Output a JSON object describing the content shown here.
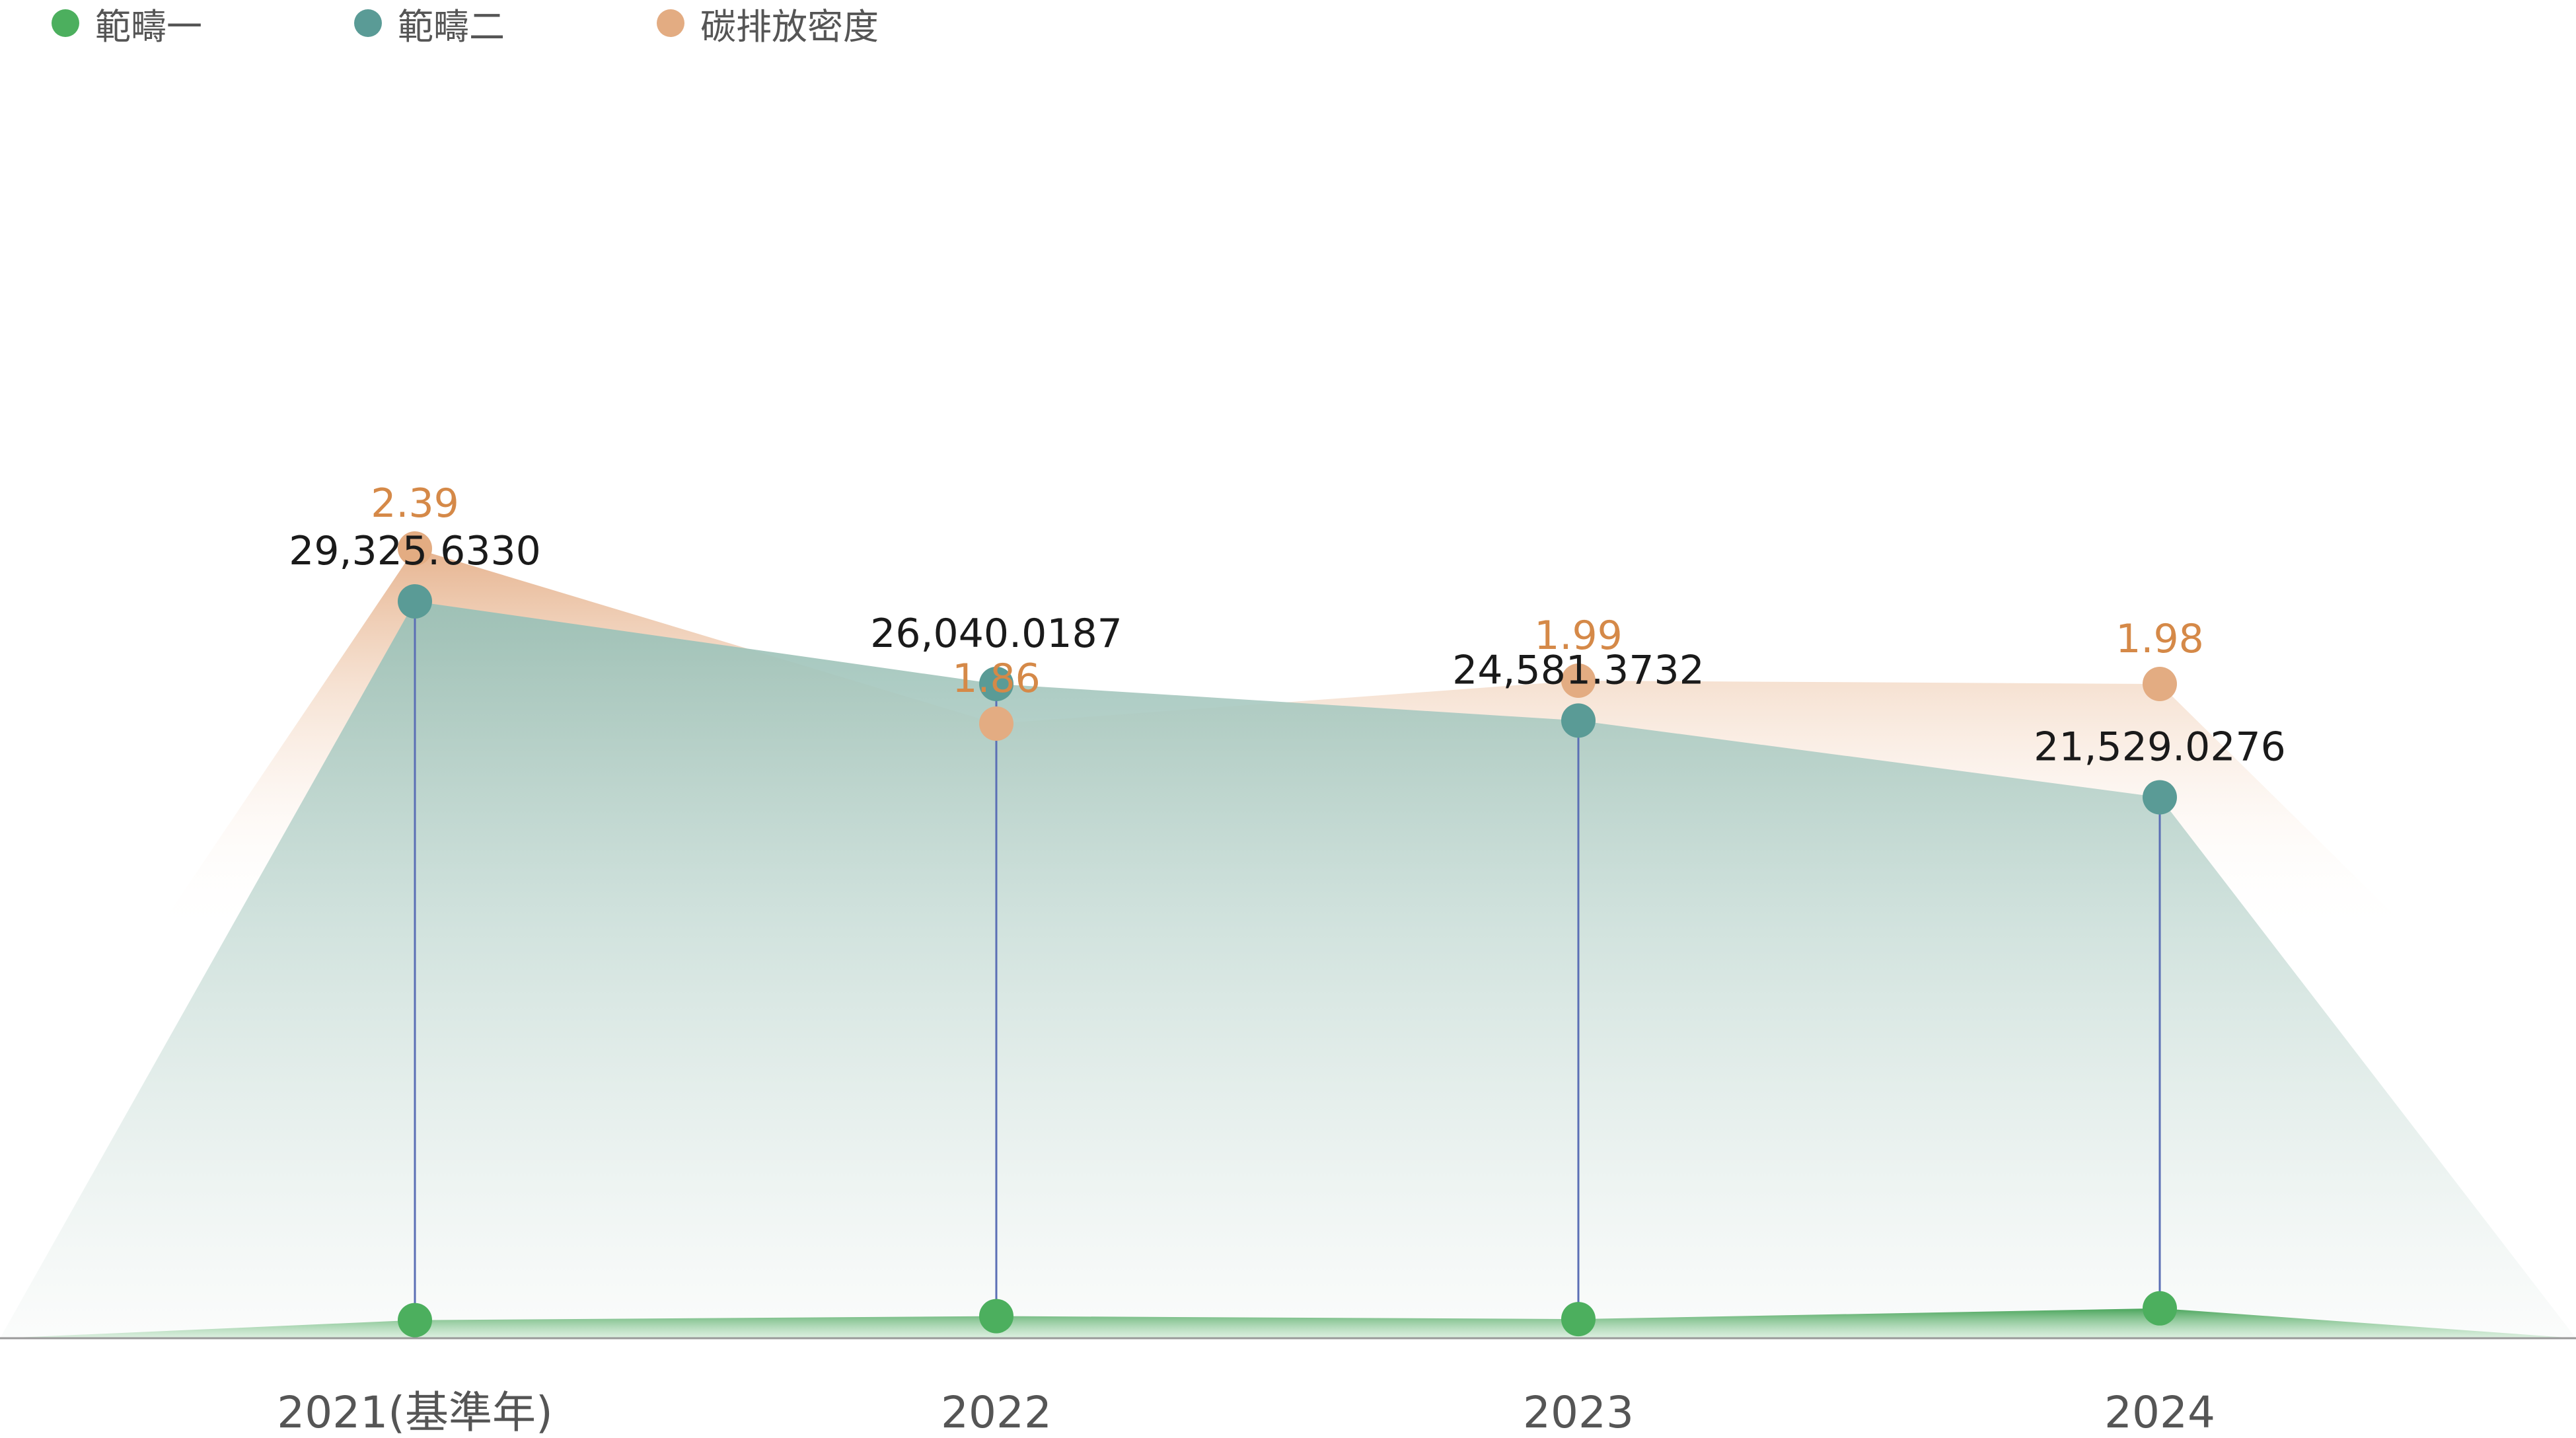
{
  "chart_data": {
    "type": "area",
    "categories": [
      "2021(基準年)",
      "2022",
      "2023",
      "2024"
    ],
    "series": [
      {
        "name": "範疇一",
        "key": "scope1",
        "color": "#4CAF5E",
        "values": [
          720,
          879,
          761,
          1189
        ],
        "labels": []
      },
      {
        "name": "範疇二",
        "key": "scope2",
        "color": "#5A9B96",
        "values": [
          29325.633,
          26040.0187,
          24581.3732,
          21529.0276
        ],
        "labels": [
          "29,325.6330",
          "26,040.0187",
          "24,581.3732",
          "21,529.0276"
        ]
      },
      {
        "name": "碳排放密度",
        "key": "intensity",
        "color": "#E3AC82",
        "label_color": "#D58948",
        "values": [
          2.39,
          1.86,
          1.99,
          1.98
        ],
        "labels": [
          "2.39",
          "1.86",
          "1.99",
          "1.98"
        ]
      }
    ],
    "title": "",
    "xlabel": "",
    "ylabel": "",
    "ylim_left": [
      0,
      48000
    ],
    "ylim_right": [
      0,
      3.65
    ],
    "legend_position": "top-left",
    "grid": false,
    "connector_color": "#5B6FB5",
    "axis_color": "#999999"
  }
}
